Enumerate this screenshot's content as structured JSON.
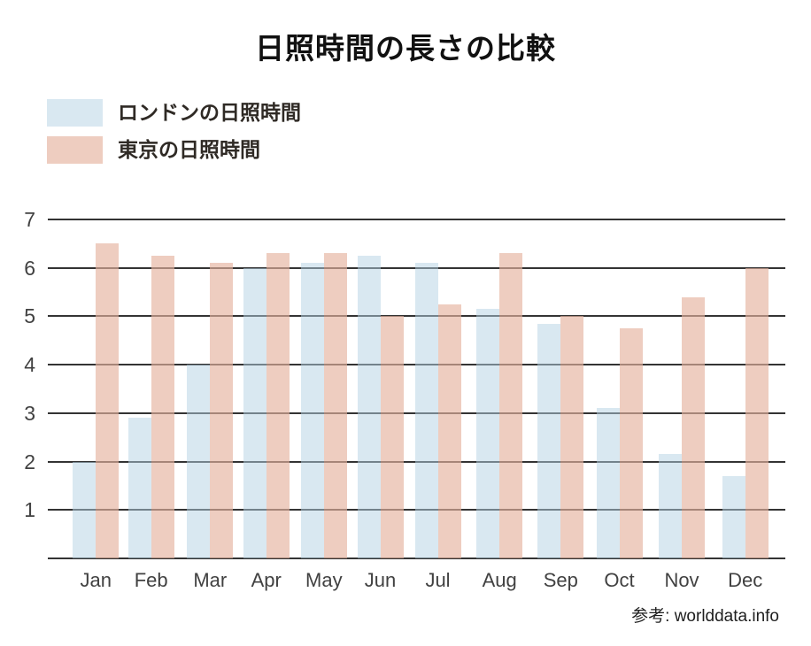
{
  "title": "日照時間の長さの比較",
  "colors": {
    "london_fill": "rgba(179,210,228,0.5)",
    "tokyo_fill": "rgba(229,178,158,0.65)",
    "london_swatch_hex": "#d9e8f1",
    "tokyo_swatch_hex": "#edcbbc",
    "gridline": "#333333",
    "axis_text": "#414141",
    "title_text": "#111111",
    "legend_text": "#2f2a25",
    "source_text": "#1e1e1e",
    "background": "#ffffff"
  },
  "chart_data": {
    "type": "bar",
    "title": "日照時間の長さの比較",
    "categories": [
      "Jan",
      "Feb",
      "Mar",
      "Apr",
      "May",
      "Jun",
      "Jul",
      "Aug",
      "Sep",
      "Oct",
      "Nov",
      "Dec"
    ],
    "series": [
      {
        "name": "ロンドンの日照時間",
        "color": "rgba(179,210,228,0.5)",
        "values": [
          2.0,
          2.9,
          4.0,
          6.0,
          6.1,
          6.25,
          6.1,
          5.15,
          4.85,
          3.1,
          2.15,
          1.7
        ]
      },
      {
        "name": "東京の日照時間",
        "color": "rgba(229,178,158,0.65)",
        "values": [
          6.5,
          6.25,
          6.1,
          6.3,
          6.3,
          5.0,
          5.25,
          6.3,
          5.0,
          4.75,
          5.4,
          6.0
        ]
      }
    ],
    "xlabel": "",
    "ylabel": "",
    "ylim": [
      0,
      7
    ],
    "yticks": [
      1,
      2,
      3,
      4,
      5,
      6,
      7
    ],
    "grid": true,
    "legend_position": "top-left",
    "source": "参考: worlddata.info"
  }
}
